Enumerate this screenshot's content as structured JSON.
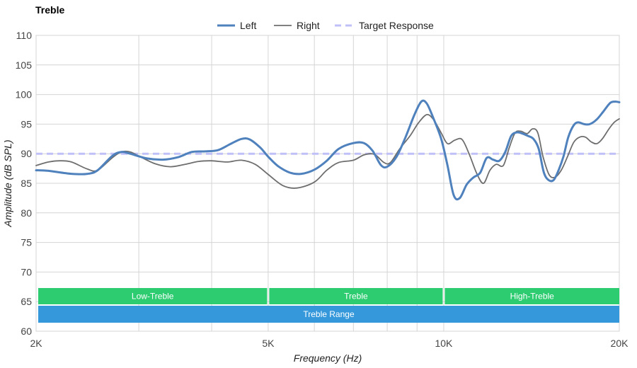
{
  "chart_data": {
    "type": "line",
    "title": "Treble",
    "xlabel": "Frequency (Hz)",
    "ylabel": "Amplitude (dB SPL)",
    "x_scale": "log",
    "xlim": [
      2000,
      20000
    ],
    "ylim": [
      60,
      110
    ],
    "x_ticks": [
      {
        "value": 2000,
        "label": "2K"
      },
      {
        "value": 5000,
        "label": "5K"
      },
      {
        "value": 10000,
        "label": "10K"
      },
      {
        "value": 20000,
        "label": "20K"
      }
    ],
    "x_gridlines": [
      2000,
      3000,
      4000,
      5000,
      6000,
      7000,
      8000,
      9000,
      10000,
      20000
    ],
    "y_ticks": [
      60,
      65,
      70,
      75,
      80,
      85,
      90,
      95,
      100,
      105,
      110
    ],
    "grid": true,
    "legend_position": "top-center",
    "series": [
      {
        "name": "Left",
        "color": "#4f81bd",
        "style": "solid-thick",
        "points": [
          [
            2000,
            87.2
          ],
          [
            2100,
            87.1
          ],
          [
            2300,
            86.6
          ],
          [
            2450,
            86.6
          ],
          [
            2550,
            87.2
          ],
          [
            2700,
            89.6
          ],
          [
            2800,
            90.3
          ],
          [
            2900,
            90.0
          ],
          [
            3100,
            89.2
          ],
          [
            3300,
            89.0
          ],
          [
            3500,
            89.4
          ],
          [
            3700,
            90.3
          ],
          [
            3900,
            90.4
          ],
          [
            4100,
            90.6
          ],
          [
            4300,
            91.6
          ],
          [
            4500,
            92.5
          ],
          [
            4650,
            92.4
          ],
          [
            4850,
            91.0
          ],
          [
            5000,
            89.5
          ],
          [
            5200,
            87.9
          ],
          [
            5450,
            86.8
          ],
          [
            5700,
            86.6
          ],
          [
            6000,
            87.3
          ],
          [
            6300,
            88.8
          ],
          [
            6600,
            90.8
          ],
          [
            7000,
            91.8
          ],
          [
            7300,
            91.8
          ],
          [
            7550,
            90.5
          ],
          [
            7800,
            88.1
          ],
          [
            8000,
            87.8
          ],
          [
            8300,
            89.5
          ],
          [
            8600,
            92.8
          ],
          [
            8900,
            96.5
          ],
          [
            9150,
            98.8
          ],
          [
            9350,
            98.5
          ],
          [
            9600,
            96.0
          ],
          [
            9900,
            92.5
          ],
          [
            10150,
            88.0
          ],
          [
            10400,
            83.0
          ],
          [
            10650,
            82.5
          ],
          [
            10950,
            84.8
          ],
          [
            11250,
            86.0
          ],
          [
            11550,
            86.8
          ],
          [
            11850,
            89.3
          ],
          [
            12150,
            89.0
          ],
          [
            12450,
            88.8
          ],
          [
            12750,
            90.3
          ],
          [
            13050,
            93.0
          ],
          [
            13350,
            93.6
          ],
          [
            13650,
            93.4
          ],
          [
            13950,
            93.0
          ],
          [
            14250,
            92.5
          ],
          [
            14550,
            90.8
          ],
          [
            14850,
            86.8
          ],
          [
            15150,
            85.5
          ],
          [
            15450,
            85.6
          ],
          [
            15750,
            87.3
          ],
          [
            16050,
            89.6
          ],
          [
            16350,
            92.8
          ],
          [
            16700,
            94.8
          ],
          [
            17000,
            95.3
          ],
          [
            17400,
            95.0
          ],
          [
            17800,
            95.0
          ],
          [
            18300,
            95.8
          ],
          [
            18800,
            97.2
          ],
          [
            19300,
            98.6
          ],
          [
            19700,
            98.8
          ],
          [
            20000,
            98.7
          ]
        ]
      },
      {
        "name": "Right",
        "color": "#6e6e6e",
        "style": "solid-thin",
        "points": [
          [
            2000,
            88.0
          ],
          [
            2100,
            88.6
          ],
          [
            2200,
            88.8
          ],
          [
            2300,
            88.6
          ],
          [
            2450,
            87.4
          ],
          [
            2550,
            87.2
          ],
          [
            2700,
            89.3
          ],
          [
            2800,
            90.3
          ],
          [
            2900,
            90.3
          ],
          [
            3000,
            89.6
          ],
          [
            3200,
            88.3
          ],
          [
            3400,
            87.8
          ],
          [
            3600,
            88.2
          ],
          [
            3800,
            88.7
          ],
          [
            4000,
            88.8
          ],
          [
            4250,
            88.6
          ],
          [
            4500,
            88.9
          ],
          [
            4750,
            88.2
          ],
          [
            5000,
            86.5
          ],
          [
            5300,
            84.6
          ],
          [
            5600,
            84.2
          ],
          [
            6000,
            85.2
          ],
          [
            6300,
            87.2
          ],
          [
            6600,
            88.5
          ],
          [
            7000,
            88.9
          ],
          [
            7300,
            89.8
          ],
          [
            7600,
            89.9
          ],
          [
            7900,
            88.5
          ],
          [
            8100,
            88.5
          ],
          [
            8400,
            90.8
          ],
          [
            8750,
            93.0
          ],
          [
            9050,
            95.2
          ],
          [
            9350,
            96.6
          ],
          [
            9600,
            95.8
          ],
          [
            9900,
            93.5
          ],
          [
            10150,
            91.7
          ],
          [
            10450,
            92.3
          ],
          [
            10750,
            92.4
          ],
          [
            11050,
            90.0
          ],
          [
            11400,
            86.6
          ],
          [
            11700,
            85.0
          ],
          [
            12000,
            87.2
          ],
          [
            12300,
            88.2
          ],
          [
            12650,
            88.0
          ],
          [
            12950,
            91.0
          ],
          [
            13250,
            93.5
          ],
          [
            13550,
            93.8
          ],
          [
            13900,
            93.4
          ],
          [
            14200,
            94.2
          ],
          [
            14500,
            93.5
          ],
          [
            14800,
            89.5
          ],
          [
            15150,
            86.5
          ],
          [
            15500,
            86.0
          ],
          [
            15900,
            87.2
          ],
          [
            16300,
            89.5
          ],
          [
            16700,
            91.9
          ],
          [
            17100,
            92.8
          ],
          [
            17500,
            92.8
          ],
          [
            17900,
            92.0
          ],
          [
            18300,
            91.7
          ],
          [
            18700,
            92.5
          ],
          [
            19200,
            94.2
          ],
          [
            19600,
            95.3
          ],
          [
            20000,
            95.9
          ]
        ]
      },
      {
        "name": "Target Response",
        "color": "#c0c0f8",
        "style": "dashed",
        "points": [
          [
            2000,
            90
          ],
          [
            20000,
            90
          ]
        ]
      }
    ],
    "bands": [
      {
        "label": "Low-Treble",
        "from": 2000,
        "to": 5000,
        "color": "#2ecc71",
        "row": 1
      },
      {
        "label": "Treble",
        "from": 5000,
        "to": 10000,
        "color": "#2ecc71",
        "row": 1
      },
      {
        "label": "High-Treble",
        "from": 10000,
        "to": 20000,
        "color": "#2ecc71",
        "row": 1
      },
      {
        "label": "Treble Range",
        "from": 2000,
        "to": 20000,
        "color": "#3498db",
        "row": 2
      }
    ]
  }
}
